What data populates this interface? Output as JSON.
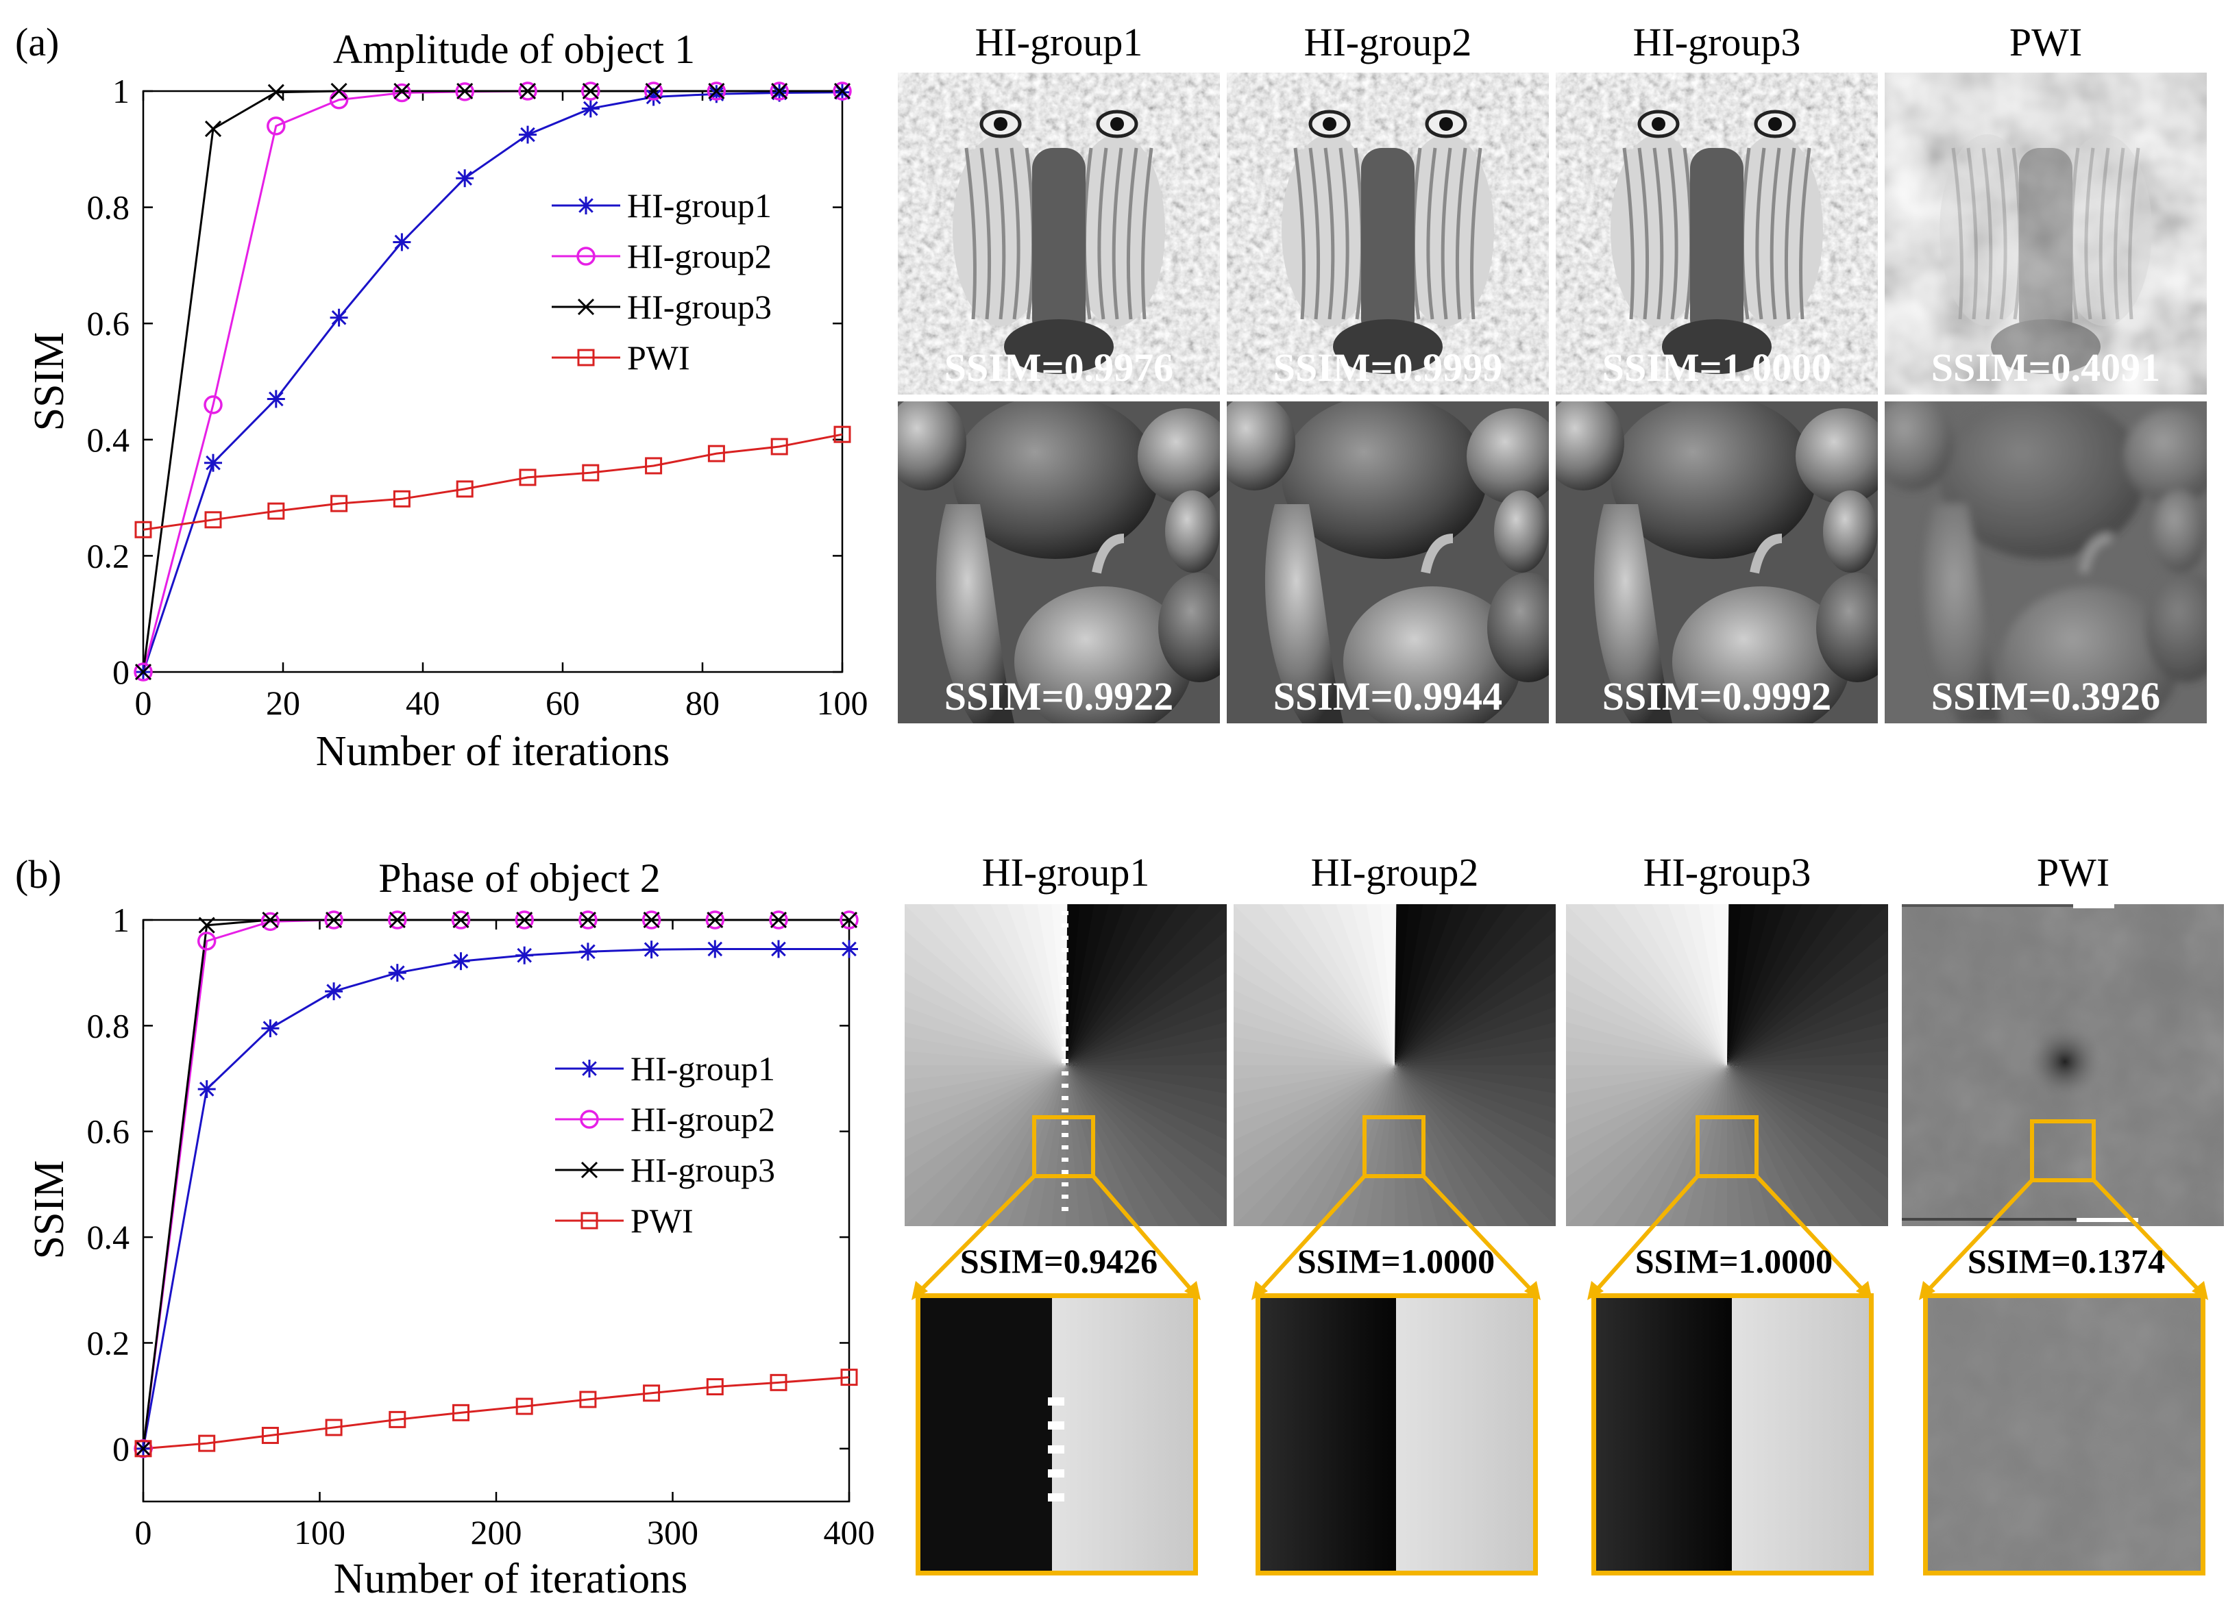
{
  "panel_labels": {
    "a": "(a)",
    "b": "(b)"
  },
  "colors": {
    "hi_group1": "#1a12c8",
    "hi_group2": "#e61fe6",
    "hi_group3": "#000000",
    "pwi": "#d92121",
    "zoom_frame": "#f4b400"
  },
  "chart_data": [
    {
      "id": "a",
      "type": "line",
      "title": "Amplitude of object 1",
      "xlabel": "Number of iterations",
      "ylabel": "SSIM",
      "xlim": [
        0,
        100
      ],
      "ylim": [
        0,
        1
      ],
      "xticks": [
        0,
        20,
        40,
        60,
        80,
        100
      ],
      "yticks": [
        0,
        0.2,
        0.4,
        0.6,
        0.8,
        1
      ],
      "ytick_labels": [
        "0",
        "0.2",
        "0.4",
        "0.6",
        "0.8",
        "1"
      ],
      "legend_position": "center-right",
      "series": [
        {
          "name": "HI-group1",
          "marker": "star",
          "colorKey": "hi_group1",
          "x": [
            0,
            10,
            19,
            28,
            37,
            46,
            55,
            64,
            73,
            82,
            91,
            100
          ],
          "y": [
            0,
            0.36,
            0.47,
            0.61,
            0.74,
            0.85,
            0.925,
            0.97,
            0.99,
            0.995,
            0.997,
            0.998
          ]
        },
        {
          "name": "HI-group2",
          "marker": "circle",
          "colorKey": "hi_group2",
          "x": [
            0,
            10,
            19,
            28,
            37,
            46,
            55,
            64,
            73,
            82,
            91,
            100
          ],
          "y": [
            0,
            0.46,
            0.94,
            0.985,
            0.997,
            0.999,
            1,
            1,
            1,
            1,
            1,
            1
          ]
        },
        {
          "name": "HI-group3",
          "marker": "x",
          "colorKey": "hi_group3",
          "x": [
            0,
            10,
            19,
            28,
            37,
            46,
            55,
            64,
            73,
            82,
            91,
            100
          ],
          "y": [
            0,
            0.935,
            0.998,
            1,
            1,
            1,
            1,
            1,
            1,
            1,
            1,
            1
          ]
        },
        {
          "name": "PWI",
          "marker": "square",
          "colorKey": "pwi",
          "x": [
            0,
            10,
            19,
            28,
            37,
            46,
            55,
            64,
            73,
            82,
            91,
            100
          ],
          "y": [
            0.245,
            0.262,
            0.277,
            0.29,
            0.298,
            0.315,
            0.335,
            0.343,
            0.355,
            0.376,
            0.388,
            0.409
          ]
        }
      ]
    },
    {
      "id": "b",
      "type": "line",
      "title": "Phase of object 2",
      "xlabel": "Number of iterations",
      "ylabel": "SSIM",
      "xlim": [
        0,
        400
      ],
      "ylim": [
        -0.1,
        1
      ],
      "xticks": [
        0,
        100,
        200,
        300,
        400
      ],
      "yticks": [
        0,
        0.2,
        0.4,
        0.6,
        0.8,
        1
      ],
      "ytick_labels": [
        "0",
        "0.2",
        "0.4",
        "0.6",
        "0.8",
        "1"
      ],
      "legend_position": "center-right",
      "series": [
        {
          "name": "HI-group1",
          "marker": "star",
          "colorKey": "hi_group1",
          "x": [
            0,
            36,
            72,
            108,
            144,
            180,
            216,
            252,
            288,
            324,
            360,
            400
          ],
          "y": [
            0,
            0.68,
            0.795,
            0.865,
            0.9,
            0.922,
            0.933,
            0.94,
            0.944,
            0.945,
            0.945,
            0.945
          ]
        },
        {
          "name": "HI-group2",
          "marker": "circle",
          "colorKey": "hi_group2",
          "x": [
            0,
            36,
            72,
            108,
            144,
            180,
            216,
            252,
            288,
            324,
            360,
            400
          ],
          "y": [
            0,
            0.96,
            0.997,
            1,
            1,
            1,
            1,
            1,
            1,
            1,
            1,
            1
          ]
        },
        {
          "name": "HI-group3",
          "marker": "x",
          "colorKey": "hi_group3",
          "x": [
            0,
            36,
            72,
            108,
            144,
            180,
            216,
            252,
            288,
            324,
            360,
            400
          ],
          "y": [
            0,
            0.99,
            1,
            1,
            1,
            1,
            1,
            1,
            1,
            1,
            1,
            1
          ]
        },
        {
          "name": "PWI",
          "marker": "square",
          "colorKey": "pwi",
          "x": [
            0,
            36,
            72,
            108,
            144,
            180,
            216,
            252,
            288,
            324,
            360,
            400
          ],
          "y": [
            0,
            0.01,
            0.025,
            0.04,
            0.055,
            0.068,
            0.08,
            0.093,
            0.105,
            0.117,
            0.125,
            0.135
          ]
        }
      ]
    }
  ],
  "panel_a_images": {
    "columns": [
      {
        "title": "HI-group1",
        "row1_ssim": "SSIM=0.9976",
        "row2_ssim": "SSIM=0.9922"
      },
      {
        "title": "HI-group2",
        "row1_ssim": "SSIM=0.9999",
        "row2_ssim": "SSIM=0.9944"
      },
      {
        "title": "HI-group3",
        "row1_ssim": "SSIM=1.0000",
        "row2_ssim": "SSIM=0.9992"
      },
      {
        "title": "PWI",
        "row1_ssim": "SSIM=0.4091",
        "row2_ssim": "SSIM=0.3926"
      }
    ]
  },
  "panel_b_images": {
    "columns": [
      {
        "title": "HI-group1",
        "ssim": "SSIM=0.9426"
      },
      {
        "title": "HI-group2",
        "ssim": "SSIM=1.0000"
      },
      {
        "title": "HI-group3",
        "ssim": "SSIM=1.0000"
      },
      {
        "title": "PWI",
        "ssim": "SSIM=0.1374"
      }
    ]
  }
}
